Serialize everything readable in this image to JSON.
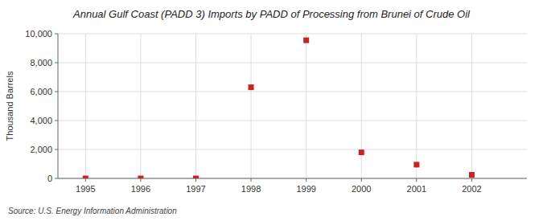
{
  "chart_data": {
    "type": "scatter",
    "title": "Annual Gulf Coast (PADD 3) Imports by PADD of Processing from Brunei of Crude Oil",
    "y_label": "Thousand Barrels",
    "annotations": [
      "Source: U.S. Energy Information Administration"
    ],
    "x": [
      1995,
      1996,
      1997,
      1998,
      1999,
      2000,
      2001,
      2002
    ],
    "values": [
      0,
      0,
      0,
      6300,
      9550,
      1800,
      950,
      250
    ],
    "color": "#cc2222",
    "marker": "square",
    "xlim": [
      1994.5,
      2003.0
    ],
    "ylim": [
      0,
      10000
    ],
    "xticks": [
      1995,
      1996,
      1997,
      1998,
      1999,
      2000,
      2001,
      2002
    ],
    "yticks": [
      0,
      {
        "value": 2000,
        "label": "2,000"
      },
      {
        "value": 4000,
        "label": "4,000"
      },
      {
        "value": 6000,
        "label": "6,000"
      },
      {
        "value": 8000,
        "label": "8,000"
      },
      {
        "value": 10000,
        "label": "10,000"
      }
    ],
    "grid": true
  }
}
